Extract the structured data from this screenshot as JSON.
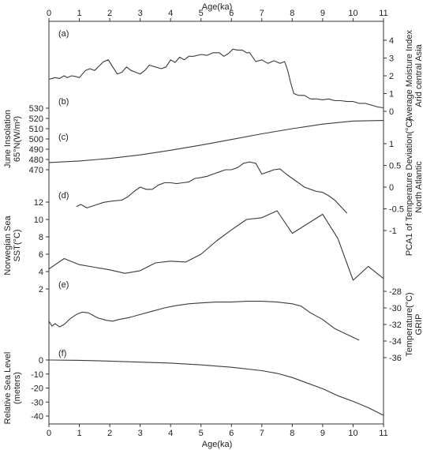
{
  "chart_data": {
    "type": "line",
    "x_axis": {
      "label": "Age(ka)",
      "range": [
        0,
        11
      ],
      "ticks": [
        0,
        1,
        2,
        3,
        4,
        5,
        6,
        7,
        8,
        9,
        10,
        11
      ]
    },
    "panels": [
      {
        "id": "a",
        "label": "(a)",
        "axis_side": "right",
        "axis_title_lines": [
          "Average Moisture Index",
          "Arid central Asia"
        ],
        "ylim": [
          0,
          4
        ],
        "ticks": [
          0,
          1,
          2,
          3,
          4
        ],
        "x": [
          0,
          0.2,
          0.35,
          0.5,
          0.6,
          0.75,
          0.9,
          1.0,
          1.2,
          1.35,
          1.5,
          1.65,
          1.8,
          1.95,
          2.1,
          2.25,
          2.4,
          2.55,
          2.7,
          2.85,
          3.0,
          3.15,
          3.3,
          3.5,
          3.7,
          3.85,
          4.0,
          4.15,
          4.3,
          4.45,
          4.6,
          4.75,
          5.0,
          5.2,
          5.4,
          5.6,
          5.75,
          5.9,
          6.05,
          6.2,
          6.35,
          6.5,
          6.6,
          6.8,
          7.0,
          7.2,
          7.4,
          7.6,
          7.75,
          7.85,
          7.95,
          8.05,
          8.2,
          8.4,
          8.6,
          8.8,
          9.0,
          9.2,
          9.4,
          9.6,
          9.8,
          10.0,
          10.2,
          10.4,
          10.6,
          10.8,
          11.0
        ],
        "y": [
          1.8,
          1.9,
          1.85,
          2.0,
          1.9,
          2.0,
          1.95,
          1.9,
          2.3,
          2.4,
          2.3,
          2.55,
          2.8,
          2.9,
          2.5,
          2.1,
          2.2,
          2.5,
          2.3,
          2.2,
          2.1,
          2.3,
          2.6,
          2.5,
          2.4,
          2.5,
          2.9,
          2.75,
          3.05,
          2.9,
          3.1,
          3.1,
          3.2,
          3.15,
          3.3,
          3.3,
          3.1,
          3.25,
          3.5,
          3.45,
          3.45,
          3.3,
          3.3,
          2.8,
          2.9,
          2.7,
          2.85,
          2.7,
          2.8,
          2.3,
          1.6,
          1.0,
          0.9,
          0.9,
          0.7,
          0.7,
          0.65,
          0.7,
          0.6,
          0.6,
          0.55,
          0.55,
          0.45,
          0.45,
          0.35,
          0.25,
          0.2
        ]
      },
      {
        "id": "b",
        "label": "(b)",
        "axis_side": "left",
        "axis_title_lines": [
          "June Insolation",
          "65°N(W/m²)"
        ],
        "ylim": [
          470,
          530
        ],
        "ticks": [
          470,
          480,
          490,
          500,
          510,
          520,
          530
        ],
        "x": [
          0,
          1,
          2,
          3,
          4,
          5,
          6,
          7,
          8,
          9,
          10,
          11
        ],
        "y": [
          477,
          478.5,
          481,
          484.5,
          489,
          494,
          499.5,
          505,
          510,
          514.5,
          517.5,
          518
        ]
      },
      {
        "id": "c",
        "label": "(c)",
        "axis_side": "right",
        "axis_title_lines": [
          "PCA1 of Temperature Deviation(°C)",
          "North Atlantic"
        ],
        "ylim": [
          -1,
          1
        ],
        "ticks": [
          -1,
          -0.5,
          0,
          0.5,
          1
        ],
        "x": [
          0.9,
          1.05,
          1.25,
          1.5,
          1.8,
          2.1,
          2.4,
          2.6,
          2.8,
          3.0,
          3.2,
          3.4,
          3.6,
          3.8,
          4.0,
          4.2,
          4.4,
          4.6,
          4.8,
          5.0,
          5.2,
          5.4,
          5.6,
          5.8,
          6.0,
          6.2,
          6.4,
          6.6,
          6.8,
          7.0,
          7.2,
          7.4,
          7.6,
          7.8,
          8.0,
          8.2,
          8.4,
          8.6,
          8.8,
          9.0,
          9.2,
          9.4,
          9.6,
          9.8
        ],
        "y": [
          -0.45,
          -0.4,
          -0.48,
          -0.42,
          -0.35,
          -0.32,
          -0.3,
          -0.22,
          -0.1,
          0.0,
          -0.05,
          -0.05,
          0.05,
          0.1,
          0.1,
          0.08,
          0.1,
          0.12,
          0.2,
          0.22,
          0.25,
          0.3,
          0.35,
          0.4,
          0.4,
          0.45,
          0.55,
          0.58,
          0.55,
          0.3,
          0.35,
          0.4,
          0.42,
          0.3,
          0.2,
          0.1,
          0.0,
          -0.05,
          -0.1,
          -0.12,
          -0.2,
          -0.3,
          -0.45,
          -0.6
        ]
      },
      {
        "id": "d",
        "label": "(d)",
        "axis_side": "left",
        "axis_title_lines": [
          "Norwegian Sea",
          "SST(°C)"
        ],
        "ylim": [
          2,
          12
        ],
        "ticks": [
          2,
          4,
          6,
          8,
          10,
          12
        ],
        "x": [
          0,
          0.5,
          1,
          1.5,
          2,
          2.5,
          3,
          3.5,
          4,
          4.5,
          5,
          5.5,
          6,
          6.5,
          7,
          7.5,
          8,
          8.5,
          9,
          9.5,
          10,
          10.5,
          11
        ],
        "y": [
          4.3,
          5.5,
          4.8,
          4.5,
          4.2,
          3.8,
          4.1,
          5.0,
          5.2,
          5.1,
          6.0,
          7.5,
          8.8,
          10.0,
          10.2,
          11.0,
          8.4,
          9.5,
          10.6,
          7.8,
          3.0,
          4.6,
          3.2
        ]
      },
      {
        "id": "e",
        "label": "(e)",
        "axis_side": "right",
        "axis_title_lines": [
          "Temperature(°C)",
          "GRIP"
        ],
        "ylim": [
          -36,
          -28
        ],
        "ticks": [
          -36,
          -34,
          -32,
          -30,
          -28
        ],
        "x": [
          0,
          0.1,
          0.2,
          0.35,
          0.5,
          0.7,
          0.9,
          1.1,
          1.3,
          1.6,
          1.9,
          2.1,
          2.3,
          2.6,
          3.0,
          3.4,
          3.8,
          4.2,
          4.6,
          5.0,
          5.5,
          6.0,
          6.5,
          7.0,
          7.5,
          8.0,
          8.3,
          8.6,
          9.0,
          9.4,
          9.8,
          10.2
        ],
        "y": [
          -31.6,
          -32.2,
          -31.9,
          -32.3,
          -32.0,
          -31.3,
          -30.8,
          -30.5,
          -30.6,
          -31.2,
          -31.5,
          -31.6,
          -31.4,
          -31.2,
          -30.8,
          -30.4,
          -30.0,
          -29.7,
          -29.5,
          -29.4,
          -29.3,
          -29.3,
          -29.2,
          -29.2,
          -29.3,
          -29.5,
          -29.8,
          -30.6,
          -31.4,
          -32.5,
          -33.2,
          -33.9
        ]
      },
      {
        "id": "f",
        "label": "(f)",
        "axis_side": "left",
        "axis_title_lines": [
          "Relative Sea Level",
          "(meters)"
        ],
        "ylim": [
          -40,
          0
        ],
        "ticks": [
          -40,
          -30,
          -20,
          -10,
          0
        ],
        "x": [
          0,
          1,
          2,
          3,
          4,
          5,
          6,
          7,
          7.5,
          8,
          8.5,
          9,
          9.5,
          10,
          10.5,
          11
        ],
        "y": [
          0,
          -0.2,
          -0.8,
          -1.5,
          -2.2,
          -3.5,
          -5.2,
          -7.6,
          -9.5,
          -12.5,
          -16.5,
          -20.5,
          -25.5,
          -29.5,
          -34.0,
          -39.5
        ]
      }
    ]
  }
}
